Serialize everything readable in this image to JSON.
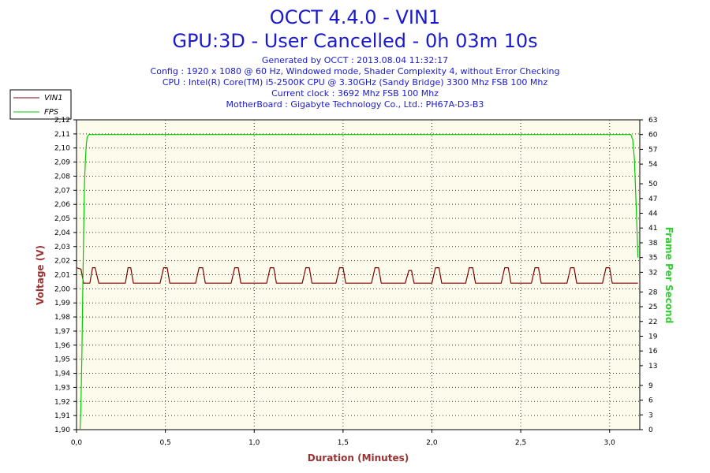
{
  "chart_data": {
    "type": "line",
    "title": "OCCT 4.4.0 - VIN1",
    "subtitle": "GPU:3D - User Cancelled - 0h 03m 10s",
    "info_lines": [
      "Generated by OCCT : 2013.08.04 11:32:17",
      "Config : 1920 x 1080 @ 60 Hz, Windowed mode, Shader Complexity 4, without Error Checking",
      "CPU : Intel(R) Core(TM) i5-2500K CPU @ 3.30GHz (Sandy Bridge) 3300 Mhz FSB 100 Mhz",
      "Current clock : 3692 Mhz FSB 100 Mhz",
      "MotherBoard : Gigabyte Technology Co., Ltd.: PH67A-D3-B3"
    ],
    "xlabel": "Duration (Minutes)",
    "ylabel": "Voltage (V)",
    "y2label": "Frame Per Second",
    "xlim": [
      0,
      3.17
    ],
    "ylim": [
      1.9,
      2.12
    ],
    "y2lim": [
      0,
      63
    ],
    "x_ticks": [
      0,
      0.5,
      1,
      1.5,
      2,
      2.5,
      3
    ],
    "x_tick_labels": [
      "0,0",
      "0,5",
      "1,0",
      "1,5",
      "2,0",
      "2,5",
      "3,0"
    ],
    "y_ticks": [
      1.9,
      1.91,
      1.92,
      1.93,
      1.94,
      1.95,
      1.96,
      1.97,
      1.98,
      1.99,
      2.0,
      2.01,
      2.02,
      2.03,
      2.04,
      2.05,
      2.06,
      2.07,
      2.08,
      2.09,
      2.1,
      2.11,
      2.12
    ],
    "y_tick_labels": [
      "1,90",
      "1,91",
      "1,92",
      "1,93",
      "1,94",
      "1,95",
      "1,96",
      "1,97",
      "1,98",
      "1,99",
      "2,00",
      "2,01",
      "2,02",
      "2,03",
      "2,04",
      "2,05",
      "2,06",
      "2,07",
      "2,08",
      "2,09",
      "2,10",
      "2,11",
      "2,12"
    ],
    "y2_ticks": [
      0,
      3,
      6,
      9,
      13,
      16,
      19,
      22,
      25,
      28,
      32,
      35,
      38,
      41,
      44,
      47,
      50,
      54,
      57,
      60,
      63
    ],
    "grid": true,
    "legend_position": "top-left",
    "series": [
      {
        "name": "VIN1",
        "axis": "left",
        "color": "#800000",
        "x": [
          0,
          0.025,
          0.04,
          0.055,
          0.075,
          0.09,
          0.105,
          0.125,
          0.275,
          0.29,
          0.305,
          0.32,
          0.47,
          0.49,
          0.51,
          0.525,
          0.67,
          0.69,
          0.71,
          0.725,
          0.87,
          0.89,
          0.91,
          0.925,
          1.07,
          1.09,
          1.11,
          1.125,
          1.27,
          1.29,
          1.31,
          1.325,
          1.46,
          1.48,
          1.5,
          1.515,
          1.66,
          1.68,
          1.7,
          1.715,
          1.85,
          1.87,
          1.885,
          1.9,
          2.0,
          2.02,
          2.04,
          2.055,
          2.19,
          2.21,
          2.23,
          2.245,
          2.39,
          2.41,
          2.43,
          2.445,
          2.56,
          2.58,
          2.6,
          2.615,
          2.76,
          2.78,
          2.8,
          2.815,
          2.96,
          2.98,
          3.0,
          3.015,
          3.16
        ],
        "y": [
          2.015,
          2.014,
          2.004,
          2.004,
          2.004,
          2.015,
          2.015,
          2.004,
          2.004,
          2.015,
          2.015,
          2.004,
          2.004,
          2.015,
          2.015,
          2.004,
          2.004,
          2.015,
          2.015,
          2.004,
          2.004,
          2.015,
          2.015,
          2.004,
          2.004,
          2.015,
          2.015,
          2.004,
          2.004,
          2.015,
          2.015,
          2.004,
          2.004,
          2.015,
          2.015,
          2.004,
          2.004,
          2.015,
          2.015,
          2.004,
          2.004,
          2.013,
          2.013,
          2.004,
          2.004,
          2.015,
          2.015,
          2.004,
          2.004,
          2.015,
          2.015,
          2.004,
          2.004,
          2.015,
          2.015,
          2.004,
          2.004,
          2.015,
          2.015,
          2.004,
          2.004,
          2.015,
          2.015,
          2.004,
          2.004,
          2.015,
          2.015,
          2.004,
          2.004
        ]
      },
      {
        "name": "FPS",
        "axis": "right",
        "color": "#00cc00",
        "x": [
          0.02,
          0.025,
          0.03,
          0.035,
          0.04,
          0.045,
          0.05,
          0.055,
          0.06,
          0.07,
          0.08,
          0.3,
          0.6,
          1.2,
          1.8,
          2.4,
          3.0,
          3.12,
          3.13,
          3.14,
          3.15,
          3.16
        ],
        "y": [
          0,
          5,
          15,
          28,
          40,
          50,
          55,
          58,
          59.5,
          60,
          60,
          60,
          60,
          60,
          60,
          60,
          60,
          60,
          59,
          55,
          45,
          35
        ]
      }
    ]
  }
}
